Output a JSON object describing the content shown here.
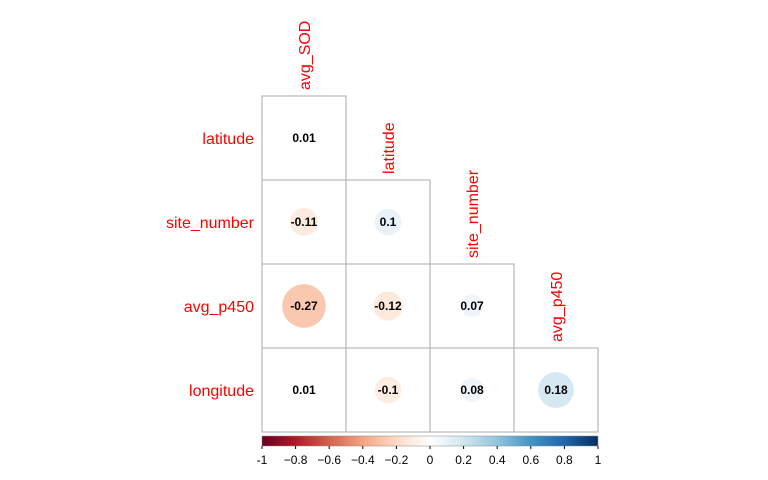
{
  "chart_data": {
    "type": "heatmap",
    "style": "correlation-circle-lower-triangle",
    "variables": [
      "avg_SOD",
      "latitude",
      "site_number",
      "avg_p450",
      "longitude"
    ],
    "rows": [
      "latitude",
      "site_number",
      "avg_p450",
      "longitude"
    ],
    "columns": [
      "avg_SOD",
      "latitude",
      "site_number",
      "avg_p450"
    ],
    "cells": [
      {
        "row": "latitude",
        "col": "avg_SOD",
        "value": 0.01
      },
      {
        "row": "site_number",
        "col": "avg_SOD",
        "value": -0.11
      },
      {
        "row": "site_number",
        "col": "latitude",
        "value": 0.1
      },
      {
        "row": "avg_p450",
        "col": "avg_SOD",
        "value": -0.27
      },
      {
        "row": "avg_p450",
        "col": "latitude",
        "value": -0.12
      },
      {
        "row": "avg_p450",
        "col": "site_number",
        "value": 0.07
      },
      {
        "row": "longitude",
        "col": "avg_SOD",
        "value": 0.01
      },
      {
        "row": "longitude",
        "col": "latitude",
        "value": -0.1
      },
      {
        "row": "longitude",
        "col": "site_number",
        "value": 0.08
      },
      {
        "row": "longitude",
        "col": "avg_p450",
        "value": 0.18
      }
    ],
    "colorbar": {
      "range": [
        -1,
        1
      ],
      "ticks": [
        "-1",
        "−0.8",
        "−0.6",
        "−0.4",
        "−0.2",
        "0",
        "0.2",
        "0.4",
        "0.6",
        "0.8",
        "1"
      ],
      "tick_values": [
        -1,
        -0.8,
        -0.6,
        -0.4,
        -0.2,
        0,
        0.2,
        0.4,
        0.6,
        0.8,
        1
      ],
      "colors": [
        "#67001f",
        "#b2182b",
        "#d6604d",
        "#f4a582",
        "#fddbc7",
        "#ffffff",
        "#d1e5f0",
        "#92c5de",
        "#4393c3",
        "#2166ac",
        "#053061"
      ]
    },
    "label_color": "#ff0000",
    "grid": true,
    "legend": "bottom"
  }
}
